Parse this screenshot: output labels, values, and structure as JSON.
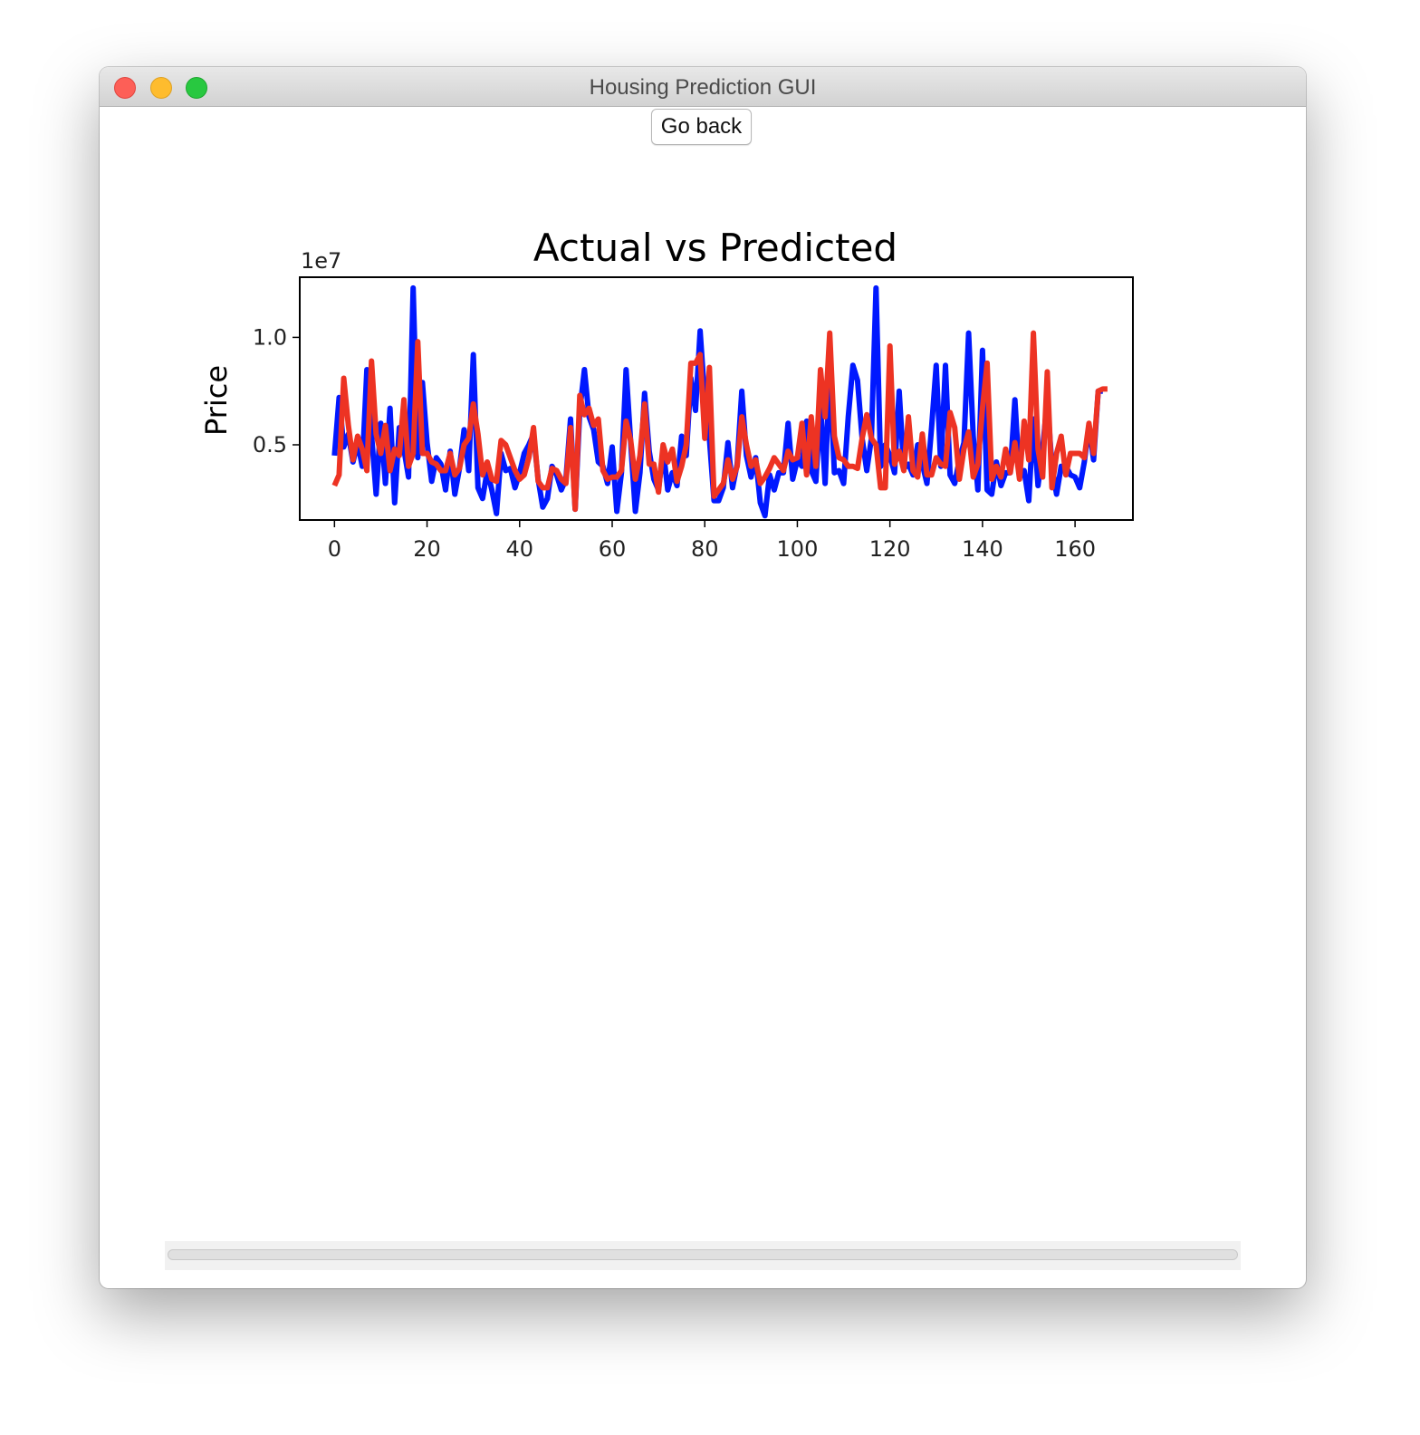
{
  "window": {
    "title": "Housing Prediction GUI"
  },
  "toolbar": {
    "go_back_label": "Go back"
  },
  "chart_data": {
    "type": "line",
    "title": "Actual vs Predicted",
    "xlabel": "",
    "ylabel": "Price",
    "offset_label": "1e7",
    "xlim": [
      -7.5,
      172.5
    ],
    "ylim": [
      1500000,
      12800000
    ],
    "x_ticks": [
      0,
      20,
      40,
      60,
      80,
      100,
      120,
      140,
      160
    ],
    "x_tick_labels": [
      "0",
      "20",
      "40",
      "60",
      "80",
      "100",
      "120",
      "140",
      "160"
    ],
    "y_ticks": [
      5000000,
      10000000
    ],
    "y_tick_labels": [
      "0.5",
      "1.0"
    ],
    "grid": false,
    "legend": "none",
    "series": [
      {
        "color": "#0018ff",
        "values": [
          4500000,
          7200000,
          4900000,
          5500000,
          4200000,
          5100000,
          4000000,
          8500000,
          5500000,
          2700000,
          6000000,
          3200000,
          6700000,
          2300000,
          5800000,
          4800000,
          3500000,
          12300000,
          4400000,
          7900000,
          5100000,
          3300000,
          4400000,
          4100000,
          2900000,
          4700000,
          2700000,
          3900000,
          5700000,
          3800000,
          9200000,
          3000000,
          2500000,
          3800000,
          2900000,
          1800000,
          4600000,
          3800000,
          3900000,
          3000000,
          3700000,
          4600000,
          5000000,
          5500000,
          3400000,
          2100000,
          2500000,
          4000000,
          3600000,
          2900000,
          3400000,
          6200000,
          2000000,
          6600000,
          8500000,
          6300000,
          5700000,
          4200000,
          4000000,
          3200000,
          4900000,
          1900000,
          3700000,
          8500000,
          5100000,
          1900000,
          3700000,
          7400000,
          4700000,
          3400000,
          2900000,
          4800000,
          2900000,
          3700000,
          3100000,
          5400000,
          4500000,
          8100000,
          6600000,
          10300000,
          7100000,
          5300000,
          2400000,
          2400000,
          3000000,
          5100000,
          3000000,
          4100000,
          7500000,
          4500000,
          3500000,
          4400000,
          2300000,
          1700000,
          3600000,
          2900000,
          3700000,
          3700000,
          6000000,
          3400000,
          4300000,
          4000000,
          6100000,
          3800000,
          3300000,
          6900000,
          3200000,
          8700000,
          3700000,
          3800000,
          3200000,
          6300000,
          8700000,
          8000000,
          5300000,
          3800000,
          5300000,
          12300000,
          4000000,
          5000000,
          4500000,
          3700000,
          7500000,
          3900000,
          4100000,
          3600000,
          5000000,
          4100000,
          3200000,
          5800000,
          8700000,
          4000000,
          8700000,
          3600000,
          3200000,
          4300000,
          5100000,
          10200000,
          5400000,
          2900000,
          9400000,
          2900000,
          2700000,
          4200000,
          3100000,
          3700000,
          3700000,
          7100000,
          3500000,
          3800000,
          2400000,
          6200000,
          3100000,
          4800000,
          7100000,
          4000000,
          2700000,
          4000000,
          4000000,
          3600000,
          3500000,
          3000000,
          4200000,
          5900000,
          4300000,
          7500000,
          7500000
        ]
      },
      {
        "color": "#ed3323",
        "values": [
          3100000,
          3600000,
          8100000,
          5900000,
          4300000,
          5400000,
          4800000,
          3800000,
          8900000,
          5500000,
          4600000,
          5900000,
          3800000,
          4800000,
          4500000,
          7100000,
          4000000,
          4600000,
          9800000,
          4600000,
          4600000,
          4200000,
          4100000,
          3800000,
          3800000,
          4600000,
          3600000,
          3900000,
          5000000,
          5300000,
          6900000,
          5500000,
          3600000,
          4200000,
          3400000,
          3300000,
          5200000,
          5000000,
          4400000,
          3800000,
          3400000,
          3600000,
          4400000,
          5800000,
          3300000,
          3000000,
          3000000,
          3900000,
          3800000,
          3400000,
          3200000,
          5800000,
          2000000,
          7300000,
          6400000,
          6700000,
          5900000,
          6200000,
          3800000,
          3400000,
          3500000,
          3500000,
          3800000,
          6100000,
          5200000,
          3400000,
          4500000,
          6900000,
          4100000,
          4100000,
          2800000,
          5000000,
          4200000,
          4800000,
          3300000,
          4000000,
          5000000,
          8800000,
          8800000,
          9200000,
          5300000,
          8600000,
          2600000,
          2900000,
          3200000,
          4300000,
          3400000,
          4000000,
          6300000,
          5000000,
          4000000,
          4300000,
          3200000,
          3500000,
          3900000,
          4400000,
          4100000,
          3800000,
          4700000,
          4300000,
          4400000,
          6000000,
          3600000,
          6300000,
          4000000,
          8500000,
          6300000,
          10200000,
          5400000,
          4400000,
          4300000,
          4000000,
          4000000,
          3900000,
          5300000,
          6400000,
          5300000,
          5000000,
          3000000,
          3000000,
          9600000,
          4100000,
          4700000,
          3800000,
          6300000,
          3800000,
          3500000,
          5500000,
          3600000,
          3600000,
          4400000,
          4100000,
          4000000,
          6500000,
          5800000,
          3400000,
          4800000,
          5600000,
          3500000,
          4100000,
          6700000,
          8800000,
          3400000,
          4000000,
          3500000,
          4800000,
          3700000,
          5100000,
          3400000,
          6100000,
          4300000,
          10200000,
          4800000,
          3500000,
          8400000,
          3000000,
          4600000,
          5400000,
          3600000,
          4600000,
          4600000,
          4600000,
          4400000,
          6000000,
          4600000,
          7500000,
          7600000,
          7600000
        ]
      }
    ]
  }
}
